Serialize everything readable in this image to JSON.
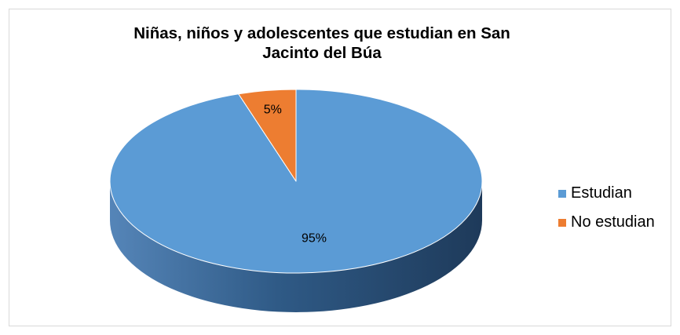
{
  "chart_data": {
    "type": "pie",
    "title_lines": [
      "Niñas, niños y adolescentes que estudian en San",
      "Jacinto del Búa"
    ],
    "categories": [
      "Estudian",
      "No estudian"
    ],
    "values": [
      95,
      5
    ],
    "data_labels": [
      "95%",
      "5%"
    ],
    "colors": [
      "#5b9bd5",
      "#ed7d31"
    ],
    "legend_position": "right",
    "style": "3d"
  }
}
